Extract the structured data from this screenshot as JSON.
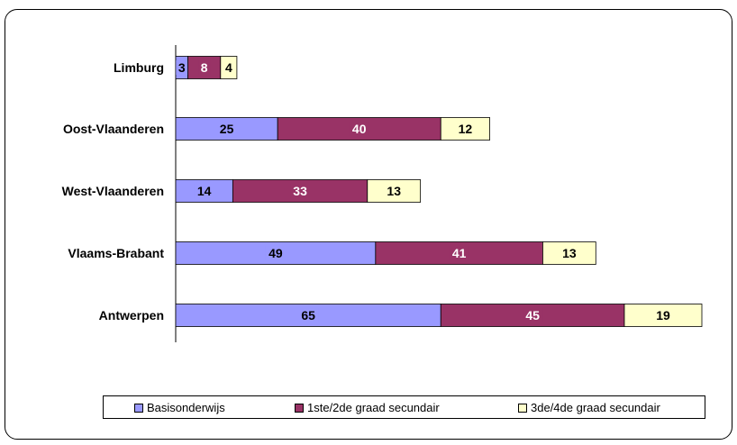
{
  "chart_data": {
    "type": "bar",
    "orientation": "horizontal",
    "stacked": true,
    "categories": [
      "Limburg",
      "Oost-Vlaanderen",
      "West-Vlaanderen",
      "Vlaams-Brabant",
      "Antwerpen"
    ],
    "series": [
      {
        "name": "Basisonderwijs",
        "color": "#9999ff",
        "values": [
          3,
          25,
          14,
          49,
          65
        ]
      },
      {
        "name": "1ste/2de graad secundair",
        "color": "#993366",
        "values": [
          8,
          40,
          33,
          41,
          45
        ]
      },
      {
        "name": "3de/4de graad secundair",
        "color": "#ffffcc",
        "values": [
          4,
          12,
          13,
          13,
          19
        ]
      }
    ],
    "xlim": [
      0,
      129
    ],
    "grid": false,
    "legend_position": "bottom"
  }
}
